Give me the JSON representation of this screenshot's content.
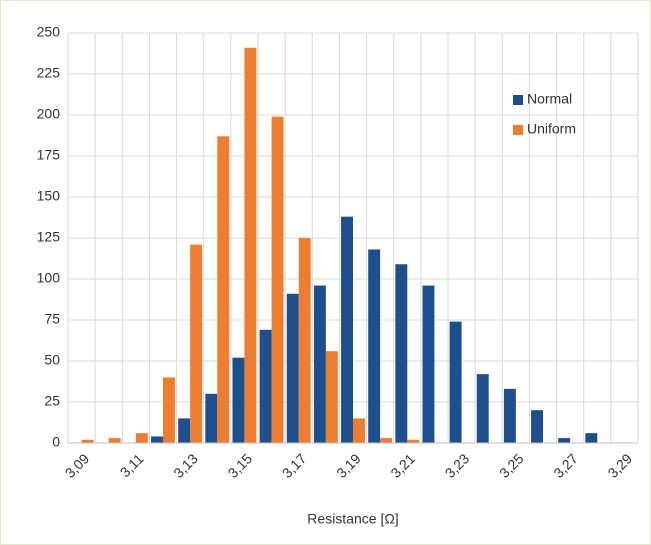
{
  "chart_data": {
    "type": "bar",
    "x_label": "Resistance [Ω]",
    "categories": [
      "3,09",
      null,
      "3,11",
      null,
      "3,13",
      null,
      "3,15",
      null,
      "3,17",
      null,
      "3,19",
      null,
      "3,21",
      null,
      "3,23",
      null,
      "3,25",
      null,
      "3,27",
      null,
      "3,29"
    ],
    "series": [
      {
        "name": "Normal",
        "color": "#1f4e8c",
        "values": [
          0,
          0,
          0,
          4,
          15,
          30,
          52,
          69,
          91,
          96,
          138,
          118,
          109,
          96,
          74,
          42,
          33,
          20,
          3,
          6,
          0
        ]
      },
      {
        "name": "Uniform",
        "color": "#ed7d31",
        "values": [
          2,
          3,
          6,
          40,
          121,
          187,
          241,
          199,
          125,
          56,
          15,
          3,
          2,
          0,
          0,
          0,
          0,
          0,
          0,
          0,
          0
        ]
      }
    ],
    "ylim": [
      0,
      250
    ],
    "yticks": [
      0,
      25,
      50,
      75,
      100,
      125,
      150,
      175,
      200,
      225,
      250
    ],
    "grid": true,
    "legend": "upper right"
  }
}
